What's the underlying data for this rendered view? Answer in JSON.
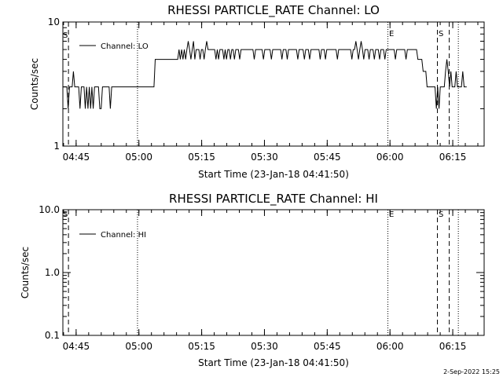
{
  "chart_data": [
    {
      "type": "line",
      "title": "RHESSI PARTICLE_RATE Channel: LO",
      "xlabel": "Start Time (23-Jan-18 04:41:50)",
      "ylabel": "Counts/sec",
      "yscale": "log",
      "ylim": [
        1,
        10
      ],
      "ytick_labels": [
        "1",
        "10"
      ],
      "xlim": [
        "04:41:50",
        "06:22:30"
      ],
      "xtick_labels": [
        "04:45",
        "05:00",
        "05:15",
        "05:30",
        "05:45",
        "06:00",
        "06:15"
      ],
      "legend": "top-left",
      "series": [
        {
          "name": "Channel: LO",
          "x_minutes_start": "04:41:50",
          "x_minutes_end": "06:18:20",
          "values": [
            3,
            3,
            3,
            3,
            2,
            3,
            3,
            3,
            4,
            3,
            3,
            3,
            3,
            2,
            3,
            3,
            3,
            2,
            3,
            2,
            3,
            2,
            3,
            2,
            3,
            3,
            3,
            3,
            2,
            2,
            3,
            3,
            3,
            3,
            3,
            3,
            2,
            3,
            3,
            3,
            3,
            3,
            3,
            3,
            3,
            3,
            3,
            3,
            3,
            3,
            3,
            3,
            3,
            3,
            3,
            3,
            3,
            3,
            3,
            3,
            3,
            3,
            3,
            3,
            3,
            3,
            3,
            3,
            3,
            3,
            5,
            5,
            5,
            5,
            5,
            5,
            5,
            5,
            5,
            5,
            5,
            5,
            5,
            5,
            5,
            5,
            5,
            5,
            6,
            5,
            6,
            5,
            6,
            5,
            6,
            7,
            6,
            5,
            6,
            7,
            5,
            6,
            6,
            6,
            5,
            6,
            6,
            5,
            6,
            7,
            6,
            6,
            6,
            6,
            6,
            6,
            5,
            6,
            5,
            6,
            6,
            6,
            5,
            6,
            5,
            6,
            6,
            5,
            6,
            6,
            5,
            6,
            6,
            6,
            5,
            6,
            6,
            6,
            6,
            6,
            6,
            6,
            6,
            6,
            6,
            5,
            6,
            6,
            6,
            6,
            6,
            6,
            5,
            6,
            6,
            6,
            6,
            6,
            5,
            6,
            6,
            6,
            6,
            6,
            6,
            6,
            5,
            6,
            6,
            6,
            5,
            6,
            6,
            6,
            6,
            6,
            6,
            6,
            5,
            6,
            6,
            6,
            6,
            5,
            6,
            6,
            6,
            5,
            6,
            6,
            6,
            6,
            6,
            6,
            6,
            5,
            6,
            6,
            6,
            5,
            6,
            6,
            6,
            6,
            6,
            6,
            6,
            6,
            5,
            6,
            6,
            6,
            6,
            6,
            6,
            6,
            6,
            6,
            6,
            5,
            6,
            6,
            7,
            6,
            5,
            6,
            7,
            6,
            5,
            6,
            6,
            6,
            5,
            6,
            6,
            6,
            5,
            6,
            6,
            6,
            5,
            6,
            6,
            6,
            5,
            6,
            6,
            6,
            6,
            6,
            6,
            6,
            5,
            6,
            6,
            6,
            6,
            6,
            6,
            6,
            5,
            6,
            6,
            6,
            6,
            6,
            6,
            6,
            6,
            5,
            5,
            5,
            5,
            4,
            4,
            4,
            3,
            3,
            3,
            3,
            3,
            3,
            3,
            2,
            3,
            2,
            3,
            3,
            3,
            3,
            4,
            5,
            4,
            3,
            4,
            3,
            3,
            3,
            4,
            3,
            3,
            3,
            3,
            4,
            3,
            3,
            3
          ]
        }
      ],
      "annotations": [
        "S",
        "E",
        "S"
      ],
      "vlines": [
        {
          "x": "04:43:10",
          "style": "dashed",
          "label": "S"
        },
        {
          "x": "04:59:40",
          "style": "dotted"
        },
        {
          "x": "05:59:30",
          "style": "dotted",
          "label": "E"
        },
        {
          "x": "06:11:20",
          "style": "dashed",
          "label": "S"
        },
        {
          "x": "06:14:10",
          "style": "dashed"
        },
        {
          "x": "06:16:20",
          "style": "dotted"
        }
      ]
    },
    {
      "type": "line",
      "title": "RHESSI PARTICLE_RATE Channel: HI",
      "xlabel": "Start Time (23-Jan-18 04:41:50)",
      "ylabel": "Counts/sec",
      "yscale": "log",
      "ylim": [
        0.1,
        10
      ],
      "ytick_labels": [
        "0.1",
        "1.0",
        "10.0"
      ],
      "xlim": [
        "04:41:50",
        "06:22:30"
      ],
      "xtick_labels": [
        "04:45",
        "05:00",
        "05:15",
        "05:30",
        "05:45",
        "06:00",
        "06:15"
      ],
      "legend": "top-left",
      "series": [
        {
          "name": "Channel: HI",
          "values": []
        }
      ],
      "annotations": [
        "S",
        "E",
        "S"
      ],
      "vlines": [
        {
          "x": "04:43:10",
          "style": "dashed",
          "label": "S"
        },
        {
          "x": "04:59:40",
          "style": "dotted"
        },
        {
          "x": "05:59:30",
          "style": "dotted",
          "label": "E"
        },
        {
          "x": "06:11:20",
          "style": "dashed",
          "label": "S"
        },
        {
          "x": "06:14:10",
          "style": "dashed"
        },
        {
          "x": "06:16:20",
          "style": "dotted"
        }
      ]
    }
  ],
  "footer": {
    "stamp": "2-Sep-2022 15:25"
  }
}
